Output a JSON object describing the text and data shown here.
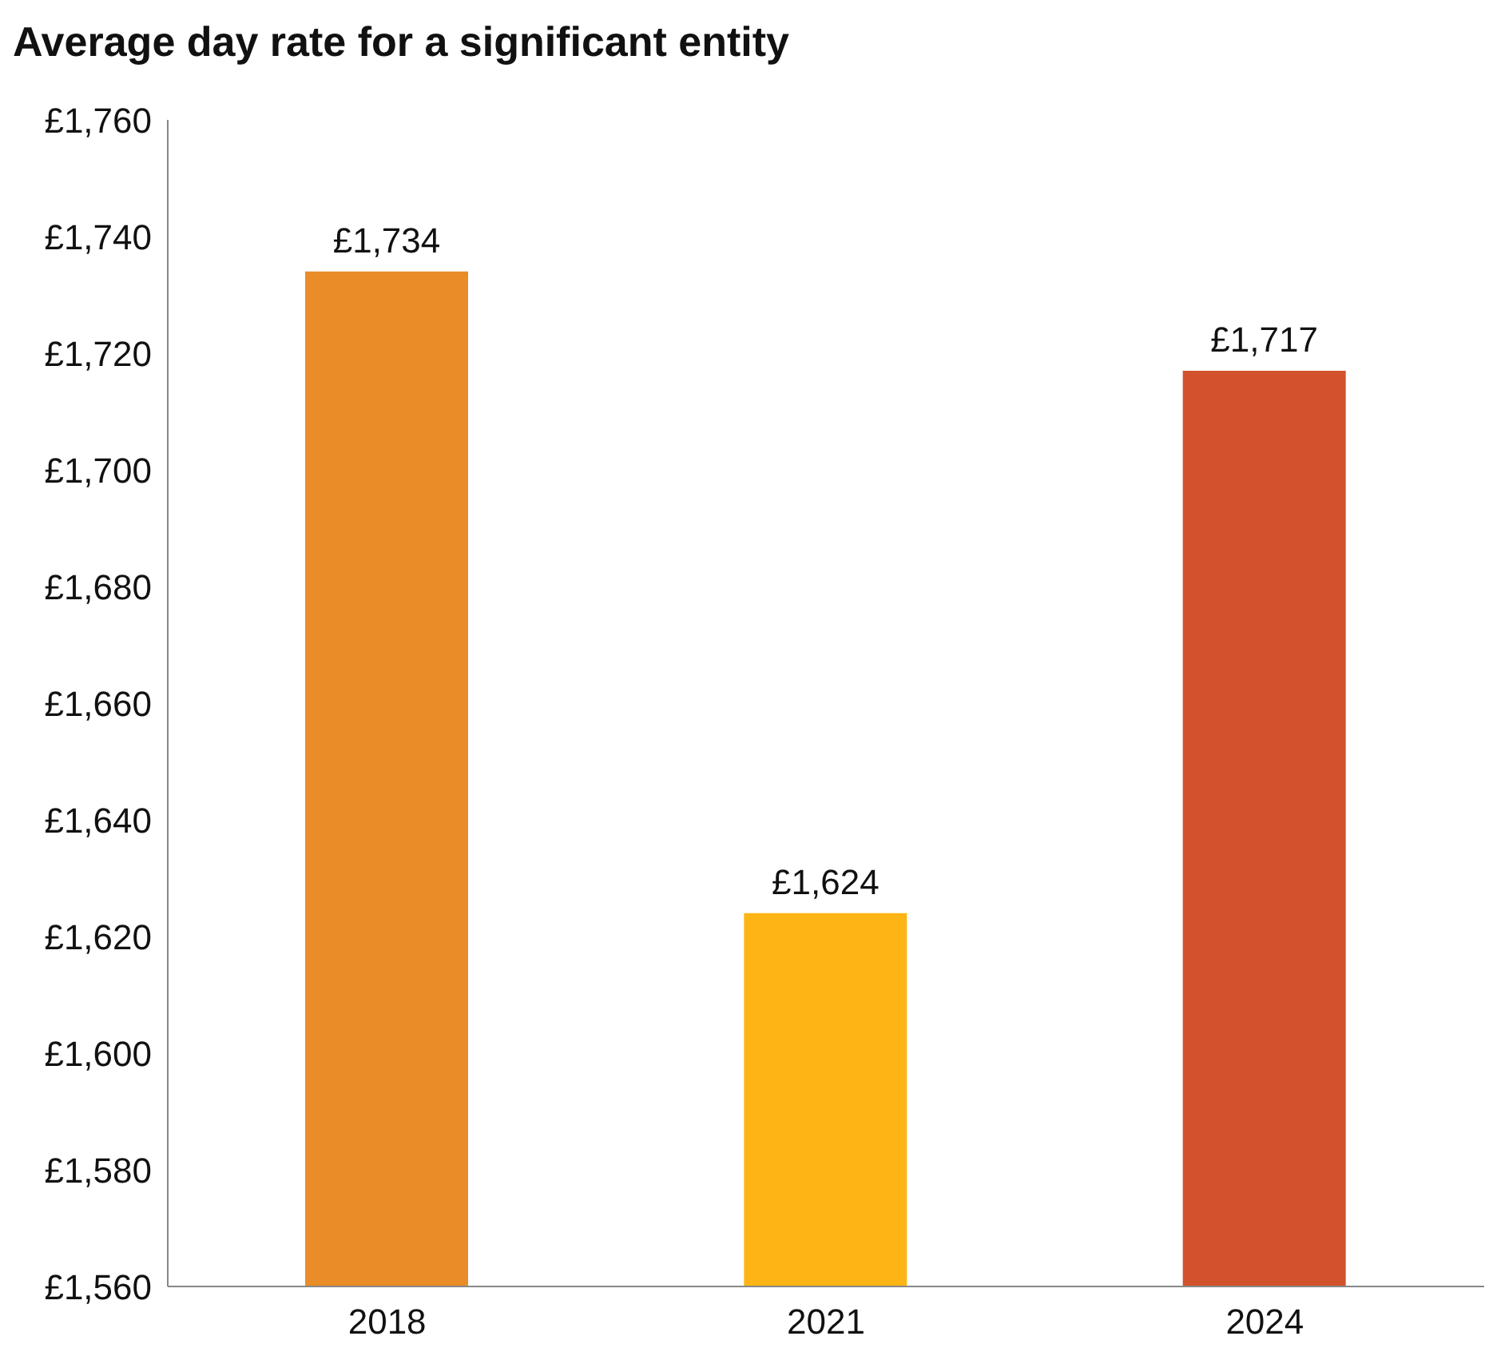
{
  "chart_data": {
    "type": "bar",
    "title": "Average day rate for a significant entity",
    "categories": [
      "2018",
      "2021",
      "2024"
    ],
    "values": [
      1734,
      1624,
      1717
    ],
    "colors": [
      "#ea8c28",
      "#fdb515",
      "#d1522b"
    ],
    "value_labels": [
      "£1,734",
      "£1,624",
      "£1,717"
    ],
    "ylim": [
      1560,
      1760
    ],
    "yticks": [
      {
        "value": 1560,
        "label": "£1,560"
      },
      {
        "value": 1580,
        "label": "£1,580"
      },
      {
        "value": 1600,
        "label": "£1,600"
      },
      {
        "value": 1620,
        "label": "£1,620"
      },
      {
        "value": 1640,
        "label": "£1,640"
      },
      {
        "value": 1660,
        "label": "£1,660"
      },
      {
        "value": 1680,
        "label": "£1,680"
      },
      {
        "value": 1700,
        "label": "£1,700"
      },
      {
        "value": 1720,
        "label": "£1,720"
      },
      {
        "value": 1740,
        "label": "£1,740"
      },
      {
        "value": 1760,
        "label": "£1,760"
      }
    ],
    "grid": false,
    "legend": false
  }
}
